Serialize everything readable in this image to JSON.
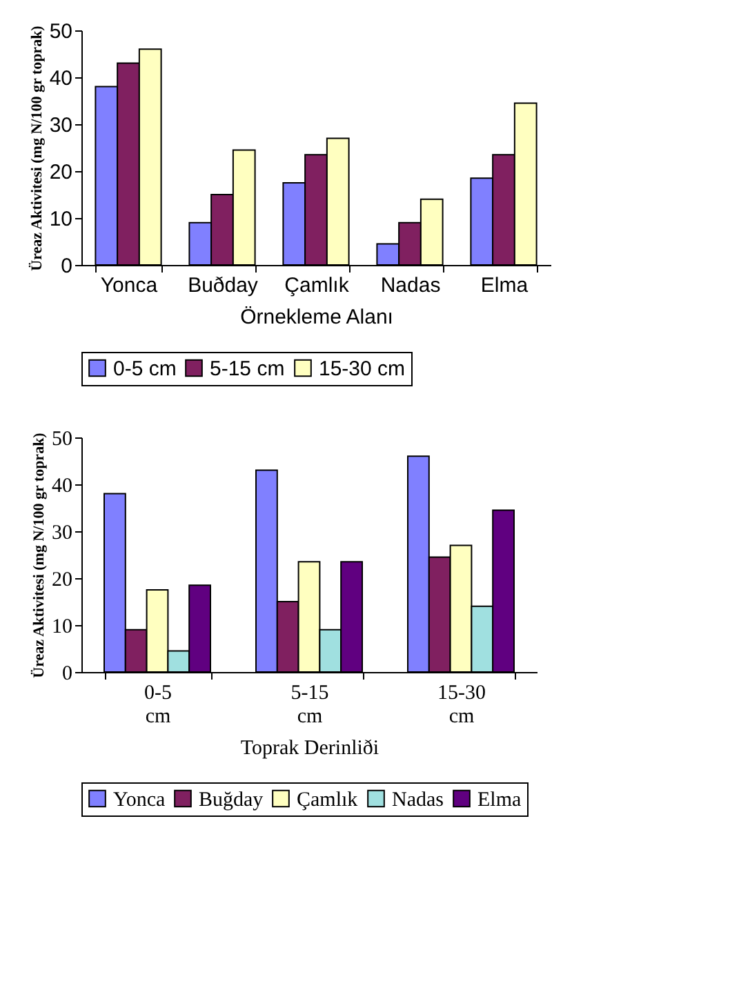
{
  "chart_data": [
    {
      "type": "bar",
      "categories": [
        "Yonca",
        "Buðday",
        "Çamlık",
        "Nadas",
        "Elma"
      ],
      "xlabel": "Örnekleme Alanı",
      "ylabel": "Üreaz Aktivitesi (mg N/100 gr toprak)",
      "ylim": [
        0,
        50
      ],
      "yticks": [
        0,
        10,
        20,
        30,
        40,
        50
      ],
      "grid": false,
      "legend": "bottom",
      "series": [
        {
          "name": "0-5 cm",
          "color": "#8080ff",
          "values": [
            38,
            9,
            17.5,
            4.5,
            18.5
          ]
        },
        {
          "name": "5-15 cm",
          "color": "#802060",
          "values": [
            43,
            15,
            23.5,
            9,
            23.5
          ]
        },
        {
          "name": "15-30 cm",
          "color": "#ffffc0",
          "values": [
            46,
            24.5,
            27,
            14,
            34.5
          ]
        }
      ]
    },
    {
      "type": "bar",
      "categories": [
        "0-5 cm",
        "5-15 cm",
        "15-30 cm"
      ],
      "xlabel": "Toprak Derinliði",
      "ylabel": "Üreaz Aktivitesi (mg N/100 gr toprak)",
      "ylim": [
        0,
        50
      ],
      "yticks": [
        0,
        10,
        20,
        30,
        40,
        50
      ],
      "grid": false,
      "legend": "bottom",
      "series": [
        {
          "name": "Yonca",
          "color": "#8080ff",
          "values": [
            38,
            43,
            46
          ]
        },
        {
          "name": "Buğday",
          "color": "#802060",
          "values": [
            9,
            15,
            24.5
          ]
        },
        {
          "name": "Çamlık",
          "color": "#ffffc0",
          "values": [
            17.5,
            23.5,
            27
          ]
        },
        {
          "name": "Nadas",
          "color": "#a0e0e0",
          "values": [
            4.5,
            9,
            14
          ]
        },
        {
          "name": "Elma",
          "color": "#600080",
          "values": [
            18.5,
            23.5,
            34.5
          ]
        }
      ]
    }
  ]
}
